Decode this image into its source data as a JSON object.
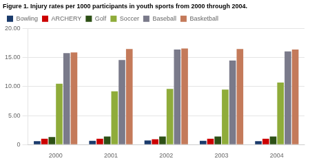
{
  "chart_data": {
    "type": "bar",
    "title": "Figure 1. Injury rates per 1000 participants in youth sports from 2000 through 2004.",
    "categories": [
      "2000",
      "2001",
      "2002",
      "2003",
      "2004"
    ],
    "series": [
      {
        "name": "Bowling",
        "color": "#1a3a6b",
        "values": [
          0.6,
          0.65,
          0.7,
          0.65,
          0.6
        ]
      },
      {
        "name": "ARCHERY",
        "color": "#cc0000",
        "values": [
          1.0,
          1.0,
          0.9,
          1.0,
          1.0
        ]
      },
      {
        "name": "Golf",
        "color": "#2d5016",
        "values": [
          1.3,
          1.4,
          1.4,
          1.4,
          1.4
        ]
      },
      {
        "name": "Soccer",
        "color": "#8fac3a",
        "values": [
          10.5,
          9.2,
          9.6,
          9.5,
          10.7
        ]
      },
      {
        "name": "Baseball",
        "color": "#7a7a8a",
        "values": [
          15.8,
          14.6,
          16.4,
          14.5,
          16.1
        ]
      },
      {
        "name": "Basketball",
        "color": "#c47a5a",
        "values": [
          15.9,
          16.5,
          16.6,
          16.5,
          16.4
        ]
      }
    ],
    "ylim": [
      0,
      20
    ],
    "yticks": [
      0,
      {
        "value": 5,
        "label": "5.00"
      },
      {
        "value": 10,
        "label": "10.00"
      },
      {
        "value": 15,
        "label": "15.00"
      },
      {
        "value": 20,
        "label": "20.00"
      }
    ],
    "grid": true,
    "legend": "top"
  }
}
